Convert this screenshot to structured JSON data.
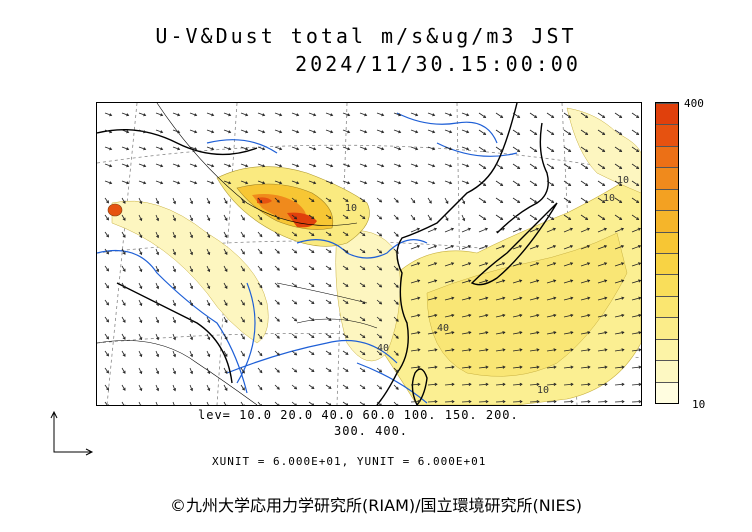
{
  "title_line1": "U-V&Dust total m/s&ug/m3 JST",
  "title_line2": "2024/11/30.15:00:00",
  "colorbar": {
    "max_label": "400",
    "min_label": "10",
    "colors": [
      "#fffde0",
      "#fdf8c2",
      "#fcf3a6",
      "#fbed8a",
      "#fae670",
      "#f9de5a",
      "#f8d344",
      "#f7c634",
      "#f5b52a",
      "#f3a122",
      "#f08a1c",
      "#ec7016",
      "#e65210",
      "#e0400c"
    ]
  },
  "levels_line1": "lev= 10.0 20.0 40.0 60.0 100. 150. 200.",
  "levels_line2": "300. 400.",
  "units_line": "XUNIT = 6.000E+01, YUNIT = 6.000E+01",
  "contour_labels": [
    "10",
    "10",
    "40",
    "40",
    "10",
    "10"
  ],
  "copyright": "©九州大学応用力学研究所(RIAM)/国立環境研究所(NIES)"
}
